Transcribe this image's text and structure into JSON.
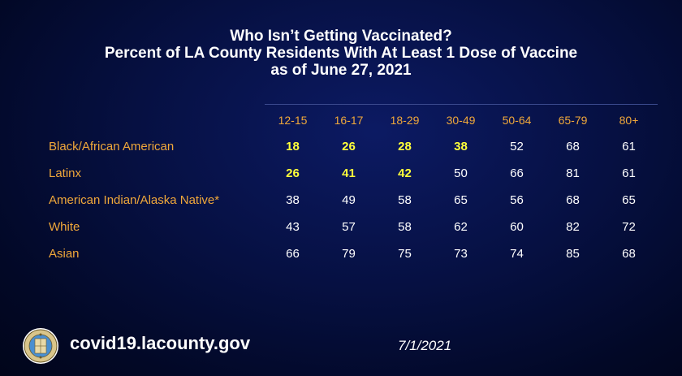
{
  "chart_data": {
    "type": "table",
    "title": [
      "Who Isn’t Getting Vaccinated?",
      "Percent of LA County Residents With At Least 1 Dose of Vaccine",
      "as of June 27, 2021"
    ],
    "columns": [
      "12-15",
      "16-17",
      "18-29",
      "30-49",
      "50-64",
      "65-79",
      "80+"
    ],
    "rows": [
      {
        "label": "Black/African American",
        "values": [
          18,
          26,
          28,
          38,
          52,
          68,
          61
        ],
        "highlight": [
          true,
          true,
          true,
          true,
          false,
          false,
          false
        ]
      },
      {
        "label": "Latinx",
        "values": [
          26,
          41,
          42,
          50,
          66,
          81,
          61
        ],
        "highlight": [
          true,
          true,
          true,
          false,
          false,
          false,
          false
        ]
      },
      {
        "label": "American Indian/Alaska Native*",
        "values": [
          38,
          49,
          58,
          65,
          56,
          68,
          65
        ],
        "highlight": [
          false,
          false,
          false,
          false,
          false,
          false,
          false
        ]
      },
      {
        "label": "White",
        "values": [
          43,
          57,
          58,
          62,
          60,
          82,
          72
        ],
        "highlight": [
          false,
          false,
          false,
          false,
          false,
          false,
          false
        ]
      },
      {
        "label": "Asian",
        "values": [
          66,
          79,
          75,
          73,
          74,
          85,
          68
        ],
        "highlight": [
          false,
          false,
          false,
          false,
          false,
          false,
          false
        ]
      }
    ],
    "colors": {
      "label": "#f0a83a",
      "highlight": "#ffff3a",
      "value": "#ffffff"
    }
  },
  "footer": {
    "url": "covid19.lacounty.gov",
    "date": "7/1/2021",
    "seal_icon": "la-county-seal-icon"
  }
}
